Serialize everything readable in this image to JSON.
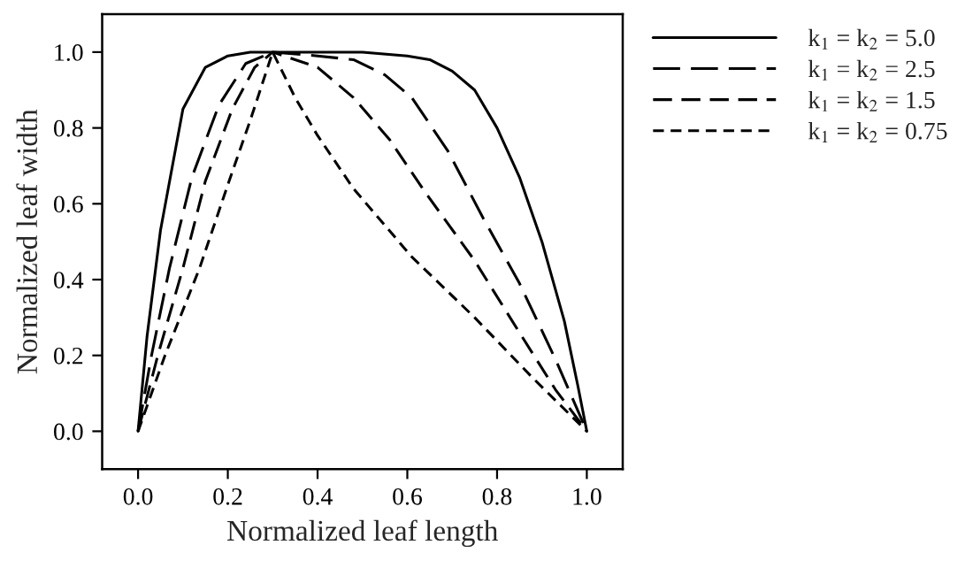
{
  "chart_data": {
    "type": "line",
    "xlabel": "Normalized leaf length",
    "ylabel": "Normalized leaf width",
    "xlim": [
      -0.08,
      1.08
    ],
    "ylim": [
      -0.1,
      1.1
    ],
    "xticks": [
      {
        "value": 0,
        "label": "0.0"
      },
      0.2,
      0.4,
      0.6,
      0.8,
      {
        "value": 1,
        "label": "1.0"
      }
    ],
    "yticks": [
      {
        "value": 0,
        "label": "0.0"
      },
      0.2,
      0.4,
      0.6,
      0.8,
      {
        "value": 1,
        "label": "1.0"
      }
    ],
    "grid": false,
    "legend": "right",
    "marker": "none",
    "series": [
      {
        "name": "k$_{1}$ = k$_{2}$ = 5.0",
        "color": "#000000",
        "line_style": "solid",
        "x": [
          0,
          0.02,
          0.05,
          0.1,
          0.15,
          0.2,
          0.25,
          0.3,
          0.4,
          0.5,
          0.6,
          0.65,
          0.7,
          0.75,
          0.8,
          0.85,
          0.9,
          0.95,
          0.98,
          1.0
        ],
        "values": [
          0,
          0.25,
          0.53,
          0.85,
          0.96,
          0.99,
          1.0,
          1.0,
          1.0,
          1.0,
          0.99,
          0.98,
          0.95,
          0.9,
          0.8,
          0.67,
          0.5,
          0.29,
          0.12,
          0
        ]
      },
      {
        "name": "k$_{1}$ = k$_{2}$ = 2.5",
        "color": "#000000",
        "line_style": "dashed",
        "x": [
          0,
          0.03,
          0.07,
          0.12,
          0.18,
          0.24,
          0.3,
          0.4,
          0.48,
          0.55,
          0.61,
          0.69,
          0.77,
          0.85,
          0.93,
          1.0
        ],
        "values": [
          0,
          0.2,
          0.43,
          0.67,
          0.86,
          0.97,
          1.0,
          0.99,
          0.98,
          0.94,
          0.88,
          0.74,
          0.56,
          0.39,
          0.19,
          0
        ]
      },
      {
        "name": "k$_{1}$ = k$_{2}$ = 1.5",
        "color": "#000000",
        "line_style": "dashed",
        "x": [
          0,
          0.044,
          0.1,
          0.15,
          0.21,
          0.26,
          0.3,
          0.4,
          0.48,
          0.56,
          0.64,
          0.75,
          0.85,
          0.93,
          1.0
        ],
        "values": [
          0,
          0.2,
          0.43,
          0.66,
          0.85,
          0.96,
          1.0,
          0.96,
          0.88,
          0.77,
          0.63,
          0.45,
          0.26,
          0.11,
          0
        ]
      },
      {
        "name": "k$_{1}$ = k$_{2}$ = 0.75",
        "color": "#000000",
        "line_style": "dashed",
        "x": [
          0,
          0.06,
          0.137,
          0.2,
          0.25,
          0.3,
          0.35,
          0.4,
          0.48,
          0.61,
          0.75,
          0.88,
          1.0
        ],
        "values": [
          0,
          0.2,
          0.43,
          0.65,
          0.82,
          1.0,
          0.88,
          0.78,
          0.64,
          0.46,
          0.3,
          0.14,
          0
        ]
      }
    ]
  }
}
